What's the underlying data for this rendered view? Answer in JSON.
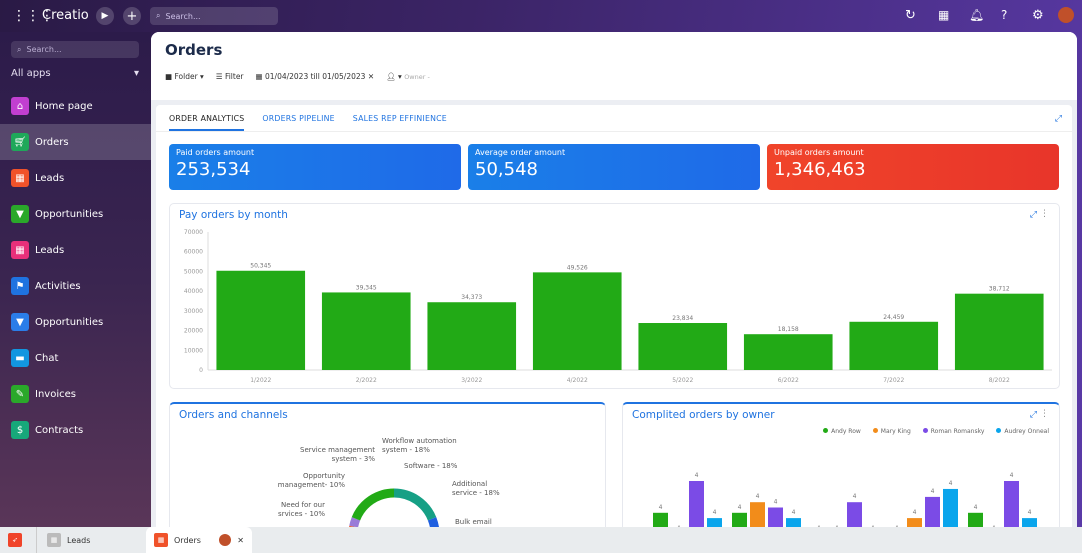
{
  "topbar": {
    "brand": "Creatio",
    "search_placeholder": "Search..."
  },
  "sidebar": {
    "search_placeholder": "Search...",
    "all_apps": "All apps",
    "items": [
      {
        "label": "Home page",
        "color": "#c13fd0",
        "icon": "home-icon"
      },
      {
        "label": "Orders",
        "color": "#1fa85a",
        "icon": "cart-icon",
        "active": true
      },
      {
        "label": "Leads",
        "color": "#f0522a",
        "icon": "building-icon"
      },
      {
        "label": "Opportunities",
        "color": "#2aa82a",
        "icon": "funnel-icon"
      },
      {
        "label": "Leads",
        "color": "#e8307a",
        "icon": "building-icon"
      },
      {
        "label": "Activities",
        "color": "#1f73e0",
        "icon": "flag-icon"
      },
      {
        "label": "Opportunities",
        "color": "#2b7de8",
        "icon": "funnel-icon"
      },
      {
        "label": "Chat",
        "color": "#1296e0",
        "icon": "chat-icon"
      },
      {
        "label": "Invoices",
        "color": "#2aa82a",
        "icon": "invoice-icon"
      },
      {
        "label": "Contracts",
        "color": "#17a87a",
        "icon": "contract-icon"
      }
    ]
  },
  "page": {
    "title": "Orders",
    "folder": "Folder",
    "filter": "Filter",
    "date_range": "01/04/2023 till 01/05/2023",
    "owner": "Owner -"
  },
  "tabs": [
    "ORDER ANALYTICS",
    "ORDERS PIPELINE",
    "SALES REP EFFINIENCE"
  ],
  "kpis": [
    {
      "label": "Paid orders amount",
      "value": "253,534",
      "color": "#1a7fe8"
    },
    {
      "label": "Average order amount",
      "value": "50,548",
      "color": "#1a7fe8"
    },
    {
      "label": "Unpaid orders amount",
      "value": "1,346,463",
      "color": "#f0442a"
    }
  ],
  "chart_data": [
    {
      "type": "bar",
      "title": "Pay orders by month",
      "categories": [
        "1/2022",
        "2/2022",
        "3/2022",
        "4/2022",
        "5/2022",
        "6/2022",
        "7/2022",
        "8/2022"
      ],
      "values": [
        50345,
        39345,
        34373,
        49526,
        23834,
        18158,
        24459,
        38712
      ],
      "data_labels": [
        "50,345",
        "39,345",
        "34,373",
        "49,526",
        "23,834",
        "18,158",
        "24,459",
        "38,712"
      ],
      "yticks": [
        "0",
        "10000",
        "20000",
        "30000",
        "40000",
        "50000",
        "60000",
        "70000"
      ],
      "ylim": [
        0,
        70000
      ],
      "color": "#22aa16"
    },
    {
      "type": "pie",
      "title": "Orders and channels",
      "labels": [
        "Workflow automation system - 18%",
        "Software - 18%",
        "Additional service - 18%",
        "Bulk email",
        "Need for our srvices - 10%",
        "Opportunity management- 10%",
        "Service management system - 3%"
      ],
      "values": [
        18,
        18,
        18,
        18,
        10,
        10,
        3
      ],
      "colors": [
        "#22aa16",
        "#16a085",
        "#1f5fe0",
        "#f28c1a",
        "#14a4e8",
        "#ef6a3a",
        "#9a7bd8"
      ]
    },
    {
      "type": "bar",
      "title": "Complited orders by owner",
      "series": [
        {
          "name": "Andy Row",
          "color": "#22aa16",
          "values": [
            4,
            4,
            0,
            0,
            4
          ]
        },
        {
          "name": "Mary King",
          "color": "#f28c1a",
          "values": [
            0,
            6,
            0,
            3,
            0
          ]
        },
        {
          "name": "Roman Romansky",
          "color": "#7b4be6",
          "values": [
            10,
            5,
            6,
            7,
            10
          ]
        },
        {
          "name": "Audrey Onneal",
          "color": "#0aa5ec",
          "values": [
            3,
            3,
            0,
            8.5,
            3
          ]
        }
      ],
      "data_label": "4",
      "legend": "top-right"
    }
  ]
}
